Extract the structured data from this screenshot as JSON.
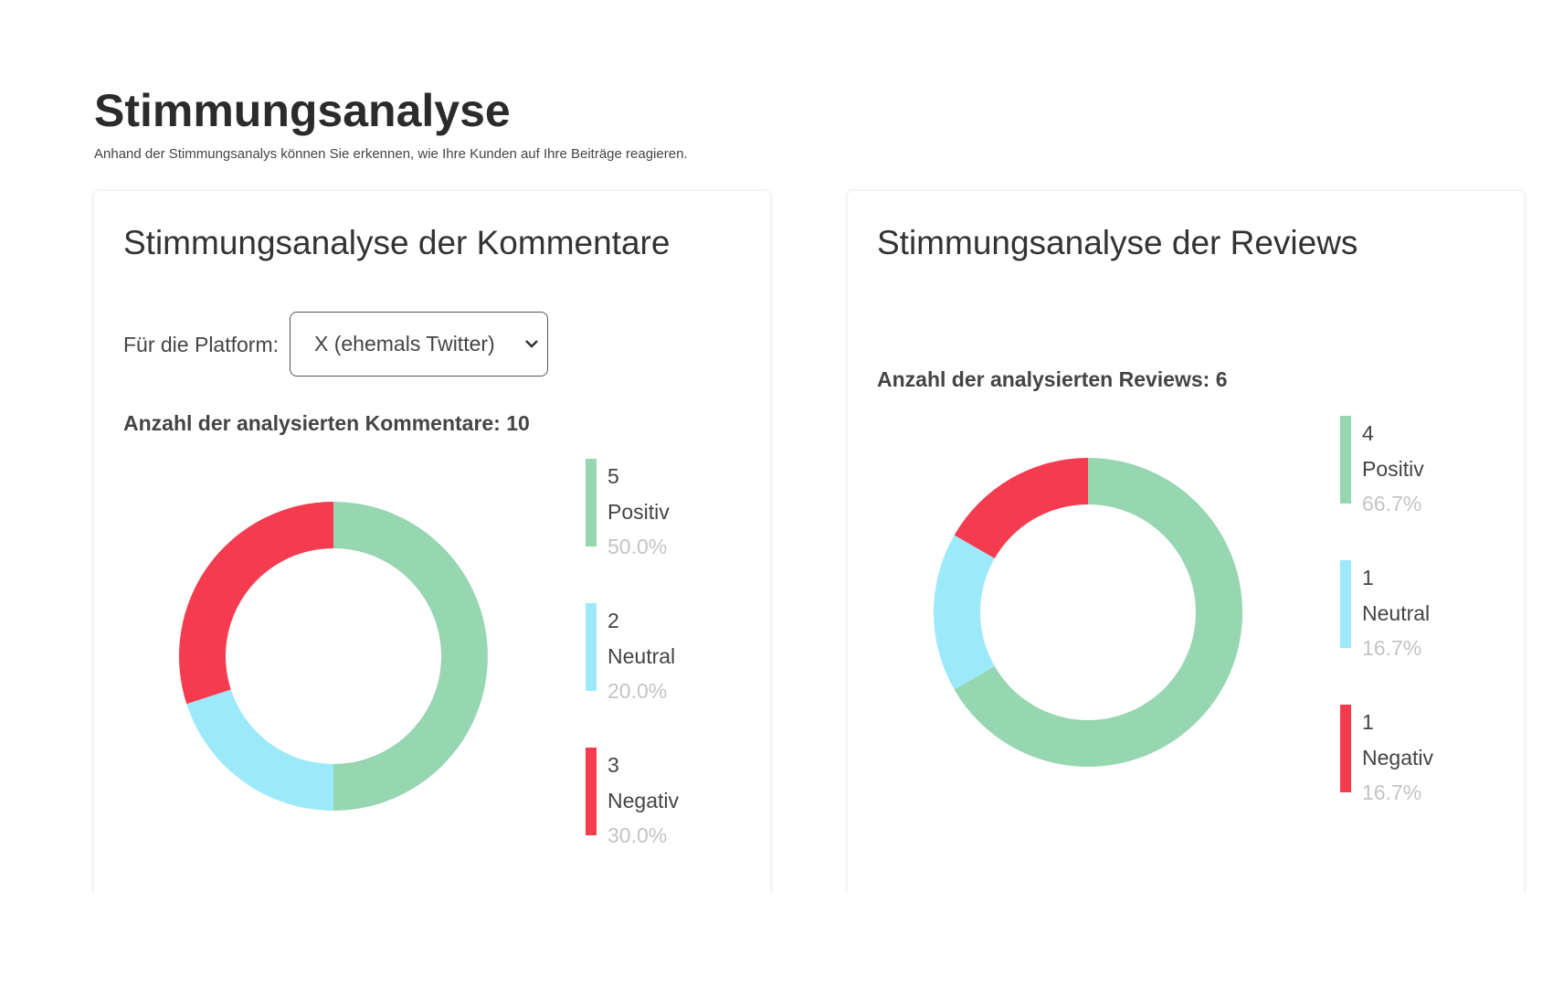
{
  "header": {
    "title": "Stimmungsanalyse",
    "subtitle": "Anhand der Stimmungsanalys können Sie erkennen, wie Ihre Kunden auf Ihre Beiträge reagieren."
  },
  "cards": [
    {
      "title": "Stimmungsanalyse der Kommentare",
      "platform_label": "Für die Platform:",
      "platform_select": "X (ehemals Twitter)",
      "count_text": "Anzahl der analysierten Kommentare: 10",
      "chart": {
        "type": "pie",
        "categories": [
          "Positiv",
          "Neutral",
          "Negativ"
        ],
        "values": [
          5,
          2,
          3
        ],
        "percentages": [
          "50.0%",
          "20.0%",
          "30.0%"
        ],
        "colors": [
          "#96d6b0",
          "#9ceaf9",
          "#f53b4f"
        ]
      }
    },
    {
      "title": "Stimmungsanalyse der Reviews",
      "count_text": "Anzahl der analysierten Reviews: 6",
      "chart": {
        "type": "pie",
        "categories": [
          "Positiv",
          "Neutral",
          "Negativ"
        ],
        "values": [
          4,
          1,
          1
        ],
        "percentages": [
          "66.7%",
          "16.7%",
          "16.7%"
        ],
        "colors": [
          "#96d6b0",
          "#9ceaf9",
          "#f53b4f"
        ]
      }
    }
  ]
}
